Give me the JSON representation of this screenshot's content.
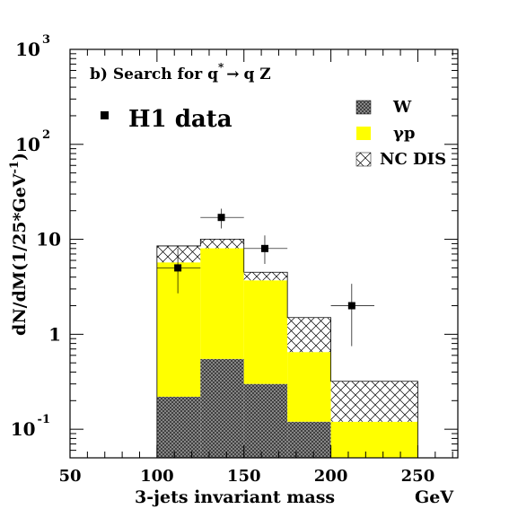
{
  "chart_data": {
    "type": "bar",
    "title": "b)  Search for q* → q Z",
    "panel_label": "b)",
    "title_parts": {
      "prefix": "b)  Search for q",
      "sup": "*",
      "arrow": "→",
      "suffix": "q Z"
    },
    "xlabel": "3-jets invariant mass",
    "xunit": "GeV",
    "ylabel": "dN/dM(1/25*GeV",
    "ylabel_sup": "-1",
    "ylabel_close": ")",
    "y_scale": "log",
    "xlim": [
      50,
      273
    ],
    "ylim": [
      0.05,
      1000
    ],
    "x_ticks": [
      {
        "value": 50,
        "label": "50"
      },
      {
        "value": 100,
        "label": "100"
      },
      {
        "value": 150,
        "label": "150"
      },
      {
        "value": 200,
        "label": "200"
      },
      {
        "value": 250,
        "label": "250"
      }
    ],
    "y_ticks": [
      {
        "value": 0.1,
        "base": "10",
        "sup": "-1"
      },
      {
        "value": 1,
        "base": "1",
        "sup": ""
      },
      {
        "value": 10,
        "base": "10",
        "sup": ""
      },
      {
        "value": 100,
        "base": "10",
        "sup": "2"
      },
      {
        "value": 1000,
        "base": "10",
        "sup": "3"
      }
    ],
    "bin_edges": [
      100,
      125,
      150,
      175,
      200,
      250
    ],
    "stack": [
      {
        "name": "W",
        "fill": "crosshatch-dense",
        "color": "#555555",
        "values": [
          0.22,
          0.55,
          0.3,
          0.12,
          0.0
        ]
      },
      {
        "name": "γp",
        "fill": "solid",
        "color": "#ffff00",
        "values": [
          5.5,
          7.5,
          3.4,
          0.53,
          0.12
        ]
      },
      {
        "name": "NC DIS",
        "fill": "crosshatch-open",
        "color": "#000000",
        "values": [
          2.8,
          2.0,
          0.8,
          0.85,
          0.2
        ]
      }
    ],
    "data_series": {
      "name": "H1 data",
      "points": [
        {
          "x": 112,
          "y": 5.0,
          "ylo": 2.7,
          "yhi": 8.0,
          "xlo": 100,
          "xhi": 125
        },
        {
          "x": 137,
          "y": 17.0,
          "ylo": 13.0,
          "yhi": 21.0,
          "xlo": 125,
          "xhi": 150
        },
        {
          "x": 162,
          "y": 8.0,
          "ylo": 5.5,
          "yhi": 11.0,
          "xlo": 150,
          "xhi": 175
        },
        {
          "x": 212,
          "y": 2.0,
          "ylo": 0.75,
          "yhi": 3.4,
          "xlo": 200,
          "xhi": 225
        }
      ]
    },
    "legend": {
      "placement": "top-right",
      "items": [
        {
          "label": "W",
          "fill": "crosshatch-dense"
        },
        {
          "label": "γp",
          "fill": "solid"
        },
        {
          "label": "NC DIS",
          "fill": "crosshatch-open"
        }
      ]
    },
    "data_legend_label": "H1 data",
    "grid": false
  }
}
